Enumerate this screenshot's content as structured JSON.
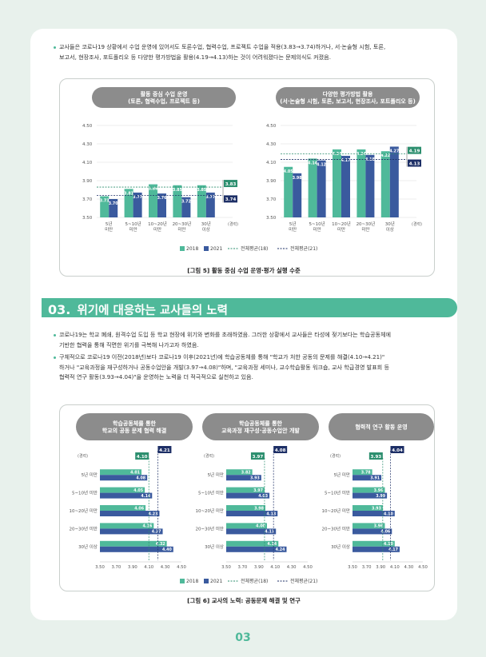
{
  "intro": {
    "bullet1_line1": "교사들은 코로나19 상황에서 수업 운영에 있어서도 토론수업, 협력수업, 프로젝트 수업을 적용(3.83→3.74)하거나, 서·논술형 시험, 토론,",
    "bullet1_line2": "보고서, 현장조사, 포트폴리오 등 다양한 평가방법을 활용(4.19→4.13)하는 것이 어려워졌다는 문제의식도 커졌음."
  },
  "figure5": {
    "caption": "[그림 5] 활동 중심 수업 운영·평가 실행 수준",
    "legend": {
      "s2018": "2018",
      "s2021": "2021",
      "avg18": "전체평균(18)",
      "avg21": "전체평균(21)"
    }
  },
  "section": {
    "number": "03.",
    "title": "위기에 대응하는 교사들의 노력"
  },
  "body": {
    "bullet2_line1": "코로나19는 학교 폐쇄, 원격수업 도입 등 학교 현장에 위기와 변화를 초래하였음. 그러한 상황에서 교사들은 타성에 젖기보다는 학습공동체에",
    "bullet2_line2": "기반한 협력을 통해 직면한 위기를 극복해 나가고자 하였음.",
    "bullet3_line1": "구체적으로 코로나19 이전(2018년)보다 코로나19 이후(2021년)에 학습공동체를 통해 \"학교가 처한 공동의 문제를 해결(4.10→4.21)\"",
    "bullet3_line2": "하거나 \"교육과정을 재구성하거나 공동수업안을 개발(3.97→4.08)\"하며, \"교육과정 세미나, 교수학습활동 워크숍, 교사 학급경영 발표회 등",
    "bullet3_line3": "협력적 연구 활동(3.93→4.04)\"을 운영하는 노력을 더 적극적으로 실천하고 있음."
  },
  "figure6": {
    "caption": "[그림 6] 교사의 노력: 공동문제 해결 및 연구",
    "legend": {
      "s2018": "2018",
      "s2021": "2021",
      "avg18": "전체평균(18)",
      "avg21": "전체평균(21)"
    }
  },
  "page_number": "03",
  "colors": {
    "c2018": "#4fb99a",
    "c2021": "#3a5a9e",
    "header": "#8c8c8c",
    "avg18": "#2d8f6f",
    "avg21": "#1d2f66"
  },
  "chart_data": [
    {
      "type": "bar",
      "title": "활동 중심 수업 운영\n(토론, 협력수업, 프로젝트 등)",
      "categories": [
        "5년 미만",
        "5~10년 미만",
        "10~20년 미만",
        "20~30년 미만",
        "30년 이상"
      ],
      "avg_label": "(경력)",
      "yticks": [
        "4.50",
        "4.30",
        "4.10",
        "3.90",
        "3.70",
        "3.50"
      ],
      "ylim": [
        3.5,
        4.5
      ],
      "series": [
        {
          "name": "2018",
          "values": [
            3.73,
            3.81,
            3.86,
            3.85,
            3.85
          ],
          "labels": [
            "3.73",
            "3.81",
            "3.86",
            "3.85",
            "3.85"
          ]
        },
        {
          "name": "2021",
          "values": [
            3.7,
            3.77,
            3.76,
            3.72,
            3.77
          ],
          "labels": [
            "3.70",
            "3.77",
            "3.76",
            "3.72",
            "3.77"
          ]
        }
      ],
      "avg18": 3.83,
      "avg18_label": "3.83",
      "avg21": 3.74,
      "avg21_label": "3.74"
    },
    {
      "type": "bar",
      "title": "다양한 평가방법 활용\n(서·논술형 시험, 토론, 보고서, 현장조사, 포트폴리오 등)",
      "categories": [
        "5년 미만",
        "5~10년 미만",
        "10~20년 미만",
        "20~30년 미만",
        "30년 이상"
      ],
      "avg_label": "(경력)",
      "yticks": [
        "4.50",
        "4.30",
        "4.10",
        "3.90",
        "3.70",
        "3.50"
      ],
      "ylim": [
        3.5,
        4.5
      ],
      "series": [
        {
          "name": "2018",
          "values": [
            4.05,
            4.14,
            4.24,
            4.24,
            4.22
          ],
          "labels": [
            "4.05",
            "4.14",
            "4.24",
            "4.24",
            "4.22"
          ]
        },
        {
          "name": "2021",
          "values": [
            3.98,
            4.12,
            4.17,
            4.18,
            4.27
          ],
          "labels": [
            "3.98",
            "4.12",
            "4.17",
            "4.18",
            "4.27"
          ]
        }
      ],
      "avg18": 4.19,
      "avg18_label": "4.19",
      "avg21": 4.13,
      "avg21_label": "4.13"
    },
    {
      "type": "bar",
      "orientation": "horizontal",
      "title": "학습공동체를 통한\n학교의 공동 문제 협력 해결",
      "categories": [
        "5년 미만",
        "5~10년 미만",
        "10~20년 미만",
        "20~30년 미만",
        "30년 이상"
      ],
      "avg_label": "(경력)",
      "xticks": [
        "3.50",
        "3.70",
        "3.90",
        "4.10",
        "4.30",
        "4.50"
      ],
      "xlim": [
        3.5,
        4.5
      ],
      "series": [
        {
          "name": "2018",
          "values": [
            4.01,
            4.05,
            4.06,
            4.16,
            4.32
          ],
          "labels": [
            "4.01",
            "4.05",
            "4.06",
            "4.16",
            "4.32"
          ]
        },
        {
          "name": "2021",
          "values": [
            4.08,
            4.14,
            4.23,
            4.27,
            4.4
          ],
          "labels": [
            "4.08",
            "4.14",
            "4.23",
            "4.27",
            "4.40"
          ]
        }
      ],
      "avg18": 4.1,
      "avg18_label": "4.10",
      "avg21": 4.21,
      "avg21_label": "4.21"
    },
    {
      "type": "bar",
      "orientation": "horizontal",
      "title": "학습공동체를 통한\n교육과정 재구성·공동수업안 개발",
      "categories": [
        "5년 미만",
        "5~10년 미만",
        "10~20년 미만",
        "20~30년 미만",
        "30년 이상"
      ],
      "avg_label": "(경력)",
      "xticks": [
        "3.50",
        "3.70",
        "3.90",
        "4.10",
        "4.30",
        "4.50"
      ],
      "xlim": [
        3.5,
        4.5
      ],
      "series": [
        {
          "name": "2018",
          "values": [
            3.82,
            3.97,
            3.98,
            4.0,
            4.14
          ],
          "labels": [
            "3.82",
            "3.97",
            "3.98",
            "4.00",
            "4.14"
          ]
        },
        {
          "name": "2021",
          "values": [
            3.93,
            4.03,
            4.13,
            4.11,
            4.24
          ],
          "labels": [
            "3.93",
            "4.03",
            "4.13",
            "4.11",
            "4.24"
          ]
        }
      ],
      "avg18": 3.97,
      "avg18_label": "3.97",
      "avg21": 4.08,
      "avg21_label": "4.08"
    },
    {
      "type": "bar",
      "orientation": "horizontal",
      "title": "협력적 연구 활동 운영",
      "categories": [
        "5년 미만",
        "5~10년 미만",
        "10~20년 미만",
        "20~30년 미만",
        "30년 이상"
      ],
      "avg_label": "(경력)",
      "xticks": [
        "3.50",
        "3.70",
        "3.90",
        "4.10",
        "4.30",
        "4.50"
      ],
      "xlim": [
        3.5,
        4.5
      ],
      "series": [
        {
          "name": "2018",
          "values": [
            3.78,
            3.96,
            3.93,
            3.96,
            4.1
          ],
          "labels": [
            "3.78",
            "3.96",
            "3.93",
            "3.96",
            "4.10"
          ]
        },
        {
          "name": "2021",
          "values": [
            3.91,
            3.99,
            4.1,
            4.06,
            4.17
          ],
          "labels": [
            "3.91",
            "3.99",
            "4.10",
            "4.06",
            "4.17"
          ]
        }
      ],
      "avg18": 3.93,
      "avg18_label": "3.93",
      "avg21": 4.04,
      "avg21_label": "4.04"
    }
  ]
}
